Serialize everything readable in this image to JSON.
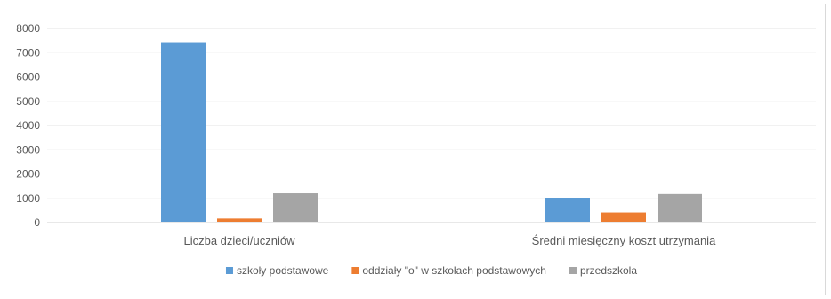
{
  "chart_data": {
    "type": "bar",
    "title": "",
    "xlabel": "",
    "ylabel": "",
    "ylim": [
      0,
      8000
    ],
    "yticks": [
      0,
      1000,
      2000,
      3000,
      4000,
      5000,
      6000,
      7000,
      8000
    ],
    "grid": true,
    "legend_position": "bottom",
    "categories": [
      "Liczba dzieci/uczniów",
      "Średni miesięczny koszt utrzymania"
    ],
    "series": [
      {
        "name": "szkoły podstawowe",
        "color": "#5b9bd5",
        "values": [
          7430,
          1020
        ]
      },
      {
        "name": "oddziały \"o\" w szkołach podstawowych",
        "color": "#ed7d31",
        "values": [
          170,
          420
        ]
      },
      {
        "name": "przedszkola",
        "color": "#a5a5a5",
        "values": [
          1210,
          1180
        ]
      }
    ]
  }
}
